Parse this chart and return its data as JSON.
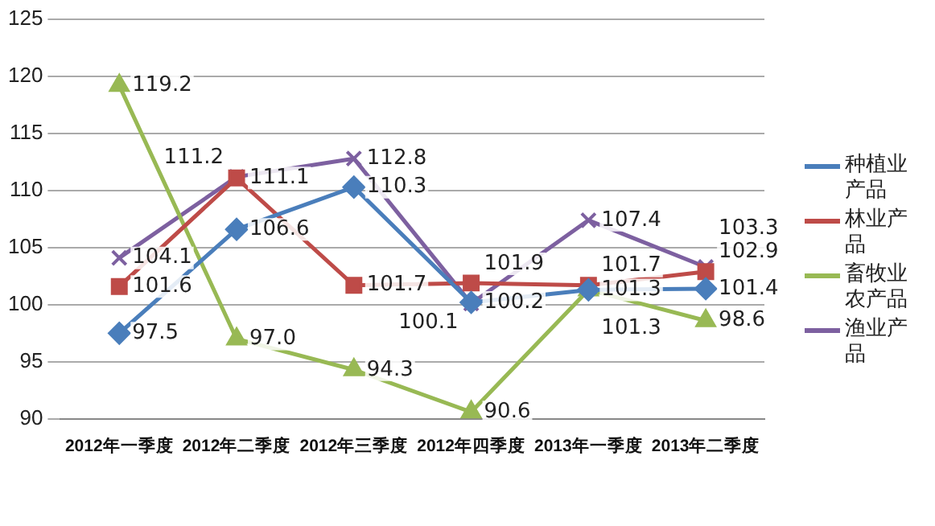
{
  "chart_data": {
    "type": "line",
    "categories": [
      "2012年一季度",
      "2012年二季度",
      "2012年三季度",
      "2012年四季度",
      "2013年一季度",
      "2013年二季度"
    ],
    "series": [
      {
        "name": "种植业产品",
        "color": "#4a7ebb",
        "marker": "diamond",
        "values": [
          97.5,
          106.6,
          110.3,
          100.2,
          101.3,
          101.4
        ],
        "value_labels": [
          "97.5",
          "106.6",
          "110.3",
          "100.2",
          "101.3",
          "101.4"
        ]
      },
      {
        "name": "林业产品",
        "color": "#be4b48",
        "marker": "square",
        "values": [
          101.6,
          111.1,
          101.7,
          101.9,
          101.7,
          102.9
        ],
        "value_labels": [
          "101.6",
          "111.1",
          "101.7",
          "101.9",
          "101.7",
          "102.9"
        ]
      },
      {
        "name": "畜牧业农产品",
        "color": "#98b954",
        "marker": "triangle",
        "values": [
          119.2,
          97.0,
          94.3,
          90.6,
          101.3,
          98.6
        ],
        "value_labels": [
          "119.2",
          "97.0",
          "94.3",
          "90.6",
          "101.3",
          "98.6"
        ]
      },
      {
        "name": "渔业产品",
        "color": "#7d60a0",
        "marker": "cross",
        "values": [
          104.1,
          111.2,
          112.8,
          100.1,
          107.4,
          103.3
        ],
        "value_labels": [
          "104.1",
          "111.2",
          "112.8",
          "100.1",
          "107.4",
          "103.3"
        ]
      }
    ],
    "ylim": [
      90,
      125
    ],
    "yticks": [
      90,
      95,
      100,
      105,
      110,
      115,
      120,
      125
    ],
    "grid": "y",
    "legend": "right",
    "line_style": "solid"
  }
}
